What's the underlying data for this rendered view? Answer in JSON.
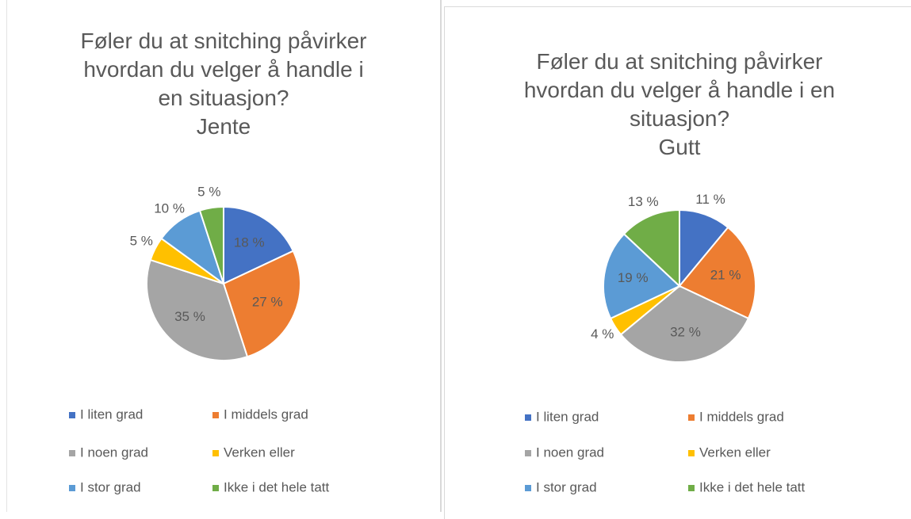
{
  "chart_data": [
    {
      "type": "pie",
      "title": "Føler du at snitching påvirker hvordan du velger å handle i en situasjon?",
      "subtitle": "Jente",
      "categories": [
        "I liten grad",
        "I middels grad",
        "I noen grad",
        "Verken eller",
        "I stor grad",
        "Ikke i det hele tatt"
      ],
      "values": [
        18,
        27,
        35,
        5,
        10,
        5
      ],
      "value_labels": [
        "18 %",
        "27 %",
        "35 %",
        "5 %",
        "10 %",
        "5 %"
      ],
      "colors": [
        "#4472c4",
        "#ed7d31",
        "#a5a5a5",
        "#ffc000",
        "#5b9bd5",
        "#70ad47"
      ]
    },
    {
      "type": "pie",
      "title": "Føler du at snitching påvirker hvordan du velger å handle i en situasjon?",
      "subtitle": "Gutt",
      "categories": [
        "I liten grad",
        "I middels grad",
        "I noen grad",
        "Verken eller",
        "I stor grad",
        "Ikke i det hele tatt"
      ],
      "values": [
        11,
        21,
        32,
        4,
        19,
        13
      ],
      "value_labels": [
        "11 %",
        "21 %",
        "32 %",
        "4 %",
        "19 %",
        "13 %"
      ],
      "colors": [
        "#4472c4",
        "#ed7d31",
        "#a5a5a5",
        "#ffc000",
        "#5b9bd5",
        "#70ad47"
      ]
    }
  ]
}
